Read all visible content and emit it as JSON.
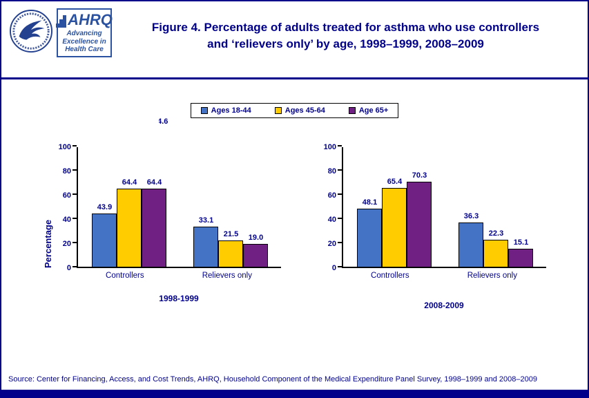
{
  "header": {
    "title": "Figure 4. Percentage of adults treated for asthma  who use controllers and ‘relievers only’ by age, 1998–1999, 2008–2009",
    "ahrq_logo": {
      "acronym": "AHRQ",
      "tagline": "Advancing Excellence in Health Care"
    }
  },
  "legend": {
    "items": [
      {
        "label": "Ages 18-44",
        "color": "#4472C4"
      },
      {
        "label": "Ages 45-64",
        "color": "#FFCC00"
      },
      {
        "label": "Age 65+",
        "color": "#702082"
      }
    ]
  },
  "stray_label": "64.6",
  "chart_data": [
    {
      "type": "bar",
      "title": "1998-1999",
      "categories": [
        "Controllers",
        "Relievers only"
      ],
      "series": [
        {
          "name": "Ages 18-44",
          "color": "#4472C4",
          "values": [
            43.9,
            33.1
          ]
        },
        {
          "name": "Ages 45-64",
          "color": "#FFCC00",
          "values": [
            64.4,
            21.5
          ]
        },
        {
          "name": "Age 65+",
          "color": "#702082",
          "values": [
            64.4,
            19.0
          ]
        }
      ],
      "xlabel": "",
      "ylabel": "Percentage",
      "ylim": [
        0,
        100
      ],
      "yticks": [
        0,
        20,
        40,
        60,
        80,
        100
      ],
      "grid": "off",
      "legend_position": "top-center"
    },
    {
      "type": "bar",
      "title": "2008-2009",
      "categories": [
        "Controllers",
        "Relievers only"
      ],
      "series": [
        {
          "name": "Ages 18-44",
          "color": "#4472C4",
          "values": [
            48.1,
            36.3
          ]
        },
        {
          "name": "Ages 45-64",
          "color": "#FFCC00",
          "values": [
            65.4,
            22.3
          ]
        },
        {
          "name": "Age 65+",
          "color": "#702082",
          "values": [
            70.3,
            15.1
          ]
        }
      ],
      "xlabel": "",
      "ylabel": "",
      "ylim": [
        0,
        100
      ],
      "yticks": [
        0,
        20,
        40,
        60,
        80,
        100
      ],
      "grid": "off",
      "legend_position": "top-center"
    }
  ],
  "footer": {
    "source": "Source: Center for Financing, Access, and Cost Trends, AHRQ,  Household Component of the Medical Expenditure Panel Survey,  1998–1999 and 2008–2009"
  },
  "colors": {
    "title_text": "#00008B",
    "axis_text": "#00008B",
    "rule": "#00008B",
    "bar_border": "#000000"
  }
}
